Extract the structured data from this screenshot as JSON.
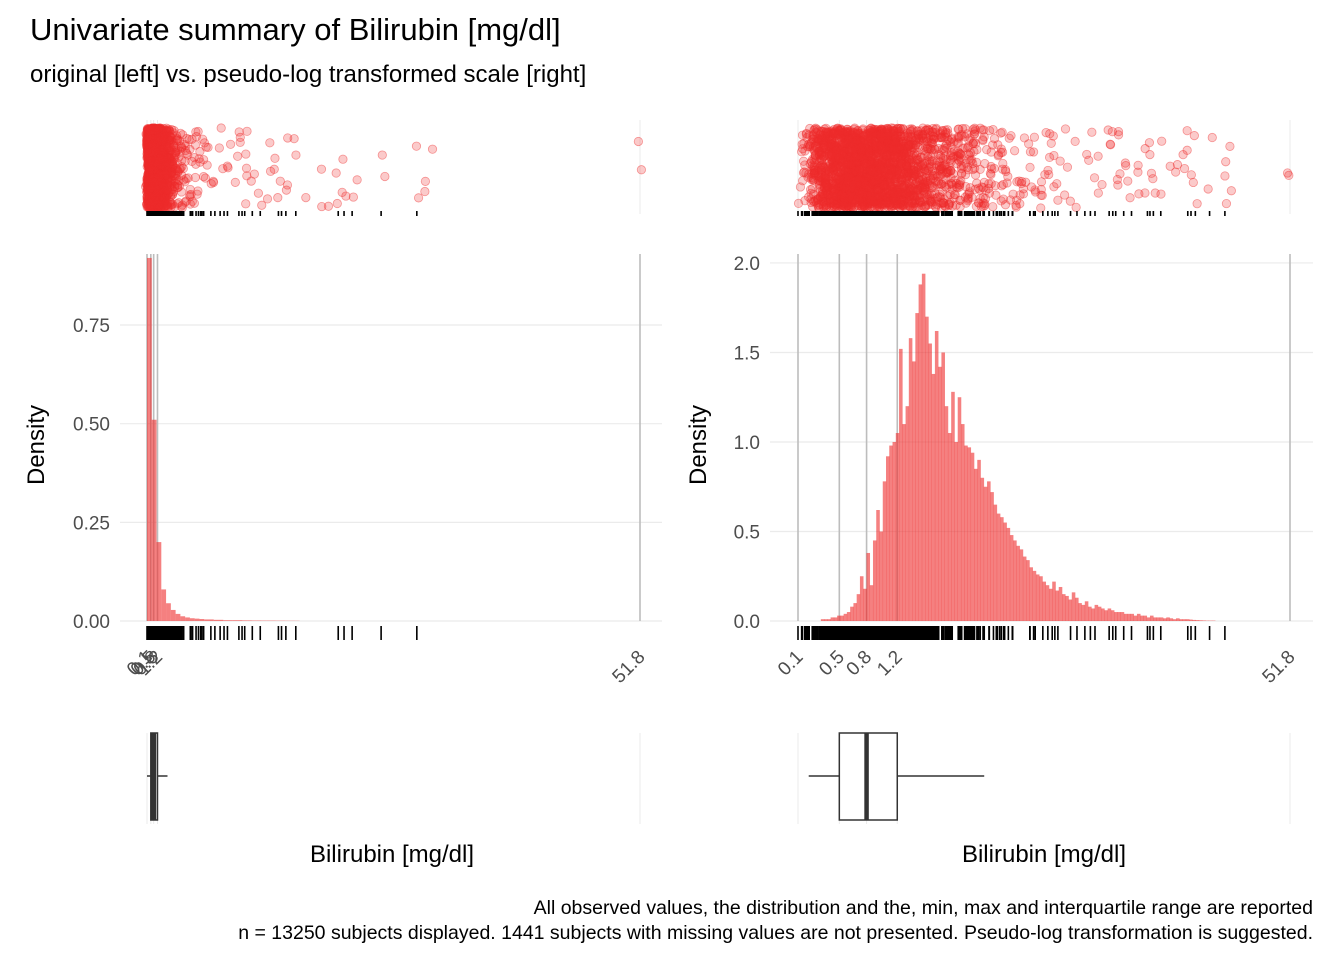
{
  "title": "Univariate summary of Bilirubin [mg/dl]",
  "subtitle": "original [left] vs. pseudo-log transformed scale [right]",
  "caption_line1": "All observed values, the distribution and the, min, max and interquartile range are reported",
  "caption_line2": "n = 13250 subjects displayed. 1441 subjects with missing values are not presented. Pseudo-log transformation is suggested.",
  "colors": {
    "fill": "#ee2c2c",
    "hist_alpha": 0.6,
    "point_alpha": 0.25,
    "grid": "#ebebeb",
    "vline": "#bdbdbd",
    "box": "#333333"
  },
  "chart_data": [
    {
      "panel": "left",
      "type": "histogram",
      "scale": "linear",
      "xlabel": "Bilirubin [mg/dl]",
      "ylabel": "Density",
      "xlim": [
        0,
        51.8
      ],
      "ylim": [
        0,
        0.93
      ],
      "yticks": [
        0,
        0.25,
        0.5,
        0.75
      ],
      "ytick_labels": [
        "0.00",
        "0.25",
        "0.50",
        "0.75"
      ],
      "xticks": [
        0.1,
        0.5,
        0.8,
        1.2,
        51.8
      ],
      "xtick_labels": [
        "0.1",
        "0.5",
        "0.8",
        "1.2",
        "51.8"
      ],
      "bin_width": 0.5,
      "bins_start": 0.1,
      "densities": [
        0.92,
        0.51,
        0.2,
        0.08,
        0.045,
        0.028,
        0.018,
        0.012,
        0.009,
        0.007,
        0.006,
        0.005,
        0.004,
        0.004,
        0.003,
        0.003,
        0.002,
        0.002,
        0.002,
        0.002,
        0.0015,
        0.0015,
        0.0012,
        0.0012,
        0.001,
        0.001,
        0.001,
        0.0008,
        0.0008,
        0.0006,
        0.0006,
        0.0005
      ],
      "summary": {
        "min": 0.1,
        "q1": 0.5,
        "median": 0.8,
        "q3": 1.2,
        "max": 51.8
      }
    },
    {
      "panel": "right",
      "type": "histogram",
      "scale": "pseudo-log",
      "xlabel": "Bilirubin [mg/dl]",
      "ylabel": "Density",
      "xlim": [
        0.1,
        51.8
      ],
      "ylim": [
        0,
        2.05
      ],
      "yticks": [
        0,
        0.5,
        1.0,
        1.5,
        2.0
      ],
      "ytick_labels": [
        "0.0",
        "0.5",
        "1.0",
        "1.5",
        "2.0"
      ],
      "xticks": [
        0.1,
        0.5,
        0.8,
        1.2,
        51.8
      ],
      "xtick_labels": [
        "0.1",
        "0.5",
        "0.8",
        "1.2",
        "51.8"
      ],
      "bins_pseudolog_start": 0.1,
      "bins_pseudolog_end": 3.95,
      "densities": [
        0.0,
        0.0,
        0.0,
        0.0,
        0.0,
        0.0,
        0.0,
        0.01,
        0.01,
        0.01,
        0.02,
        0.02,
        0.03,
        0.03,
        0.04,
        0.05,
        0.08,
        0.1,
        0.15,
        0.25,
        0.18,
        0.38,
        0.2,
        0.45,
        0.62,
        0.5,
        0.78,
        0.92,
        0.98,
        1.0,
        1.05,
        1.52,
        1.1,
        1.2,
        1.58,
        1.45,
        1.72,
        1.88,
        1.94,
        1.7,
        1.55,
        1.38,
        1.62,
        1.42,
        1.5,
        1.2,
        1.05,
        1.28,
        1.0,
        1.25,
        1.1,
        0.98,
        0.97,
        0.94,
        0.85,
        0.9,
        0.8,
        0.75,
        0.78,
        0.72,
        0.65,
        0.6,
        0.58,
        0.55,
        0.52,
        0.48,
        0.45,
        0.42,
        0.4,
        0.36,
        0.34,
        0.3,
        0.28,
        0.26,
        0.25,
        0.22,
        0.2,
        0.18,
        0.22,
        0.17,
        0.19,
        0.15,
        0.14,
        0.12,
        0.16,
        0.13,
        0.1,
        0.09,
        0.11,
        0.08,
        0.07,
        0.09,
        0.08,
        0.07,
        0.06,
        0.07,
        0.06,
        0.05,
        0.05,
        0.05,
        0.04,
        0.04,
        0.04,
        0.03,
        0.04,
        0.03,
        0.03,
        0.02,
        0.03,
        0.02,
        0.02,
        0.02,
        0.015,
        0.02,
        0.015,
        0.01,
        0.015,
        0.01,
        0.01,
        0.01,
        0.008,
        0.006,
        0.005,
        0.004,
        0.003,
        0.002,
        0.002,
        0.002
      ],
      "summary": {
        "min": 0.1,
        "q1": 0.5,
        "median": 0.8,
        "q3": 1.2,
        "max": 51.8
      }
    }
  ]
}
